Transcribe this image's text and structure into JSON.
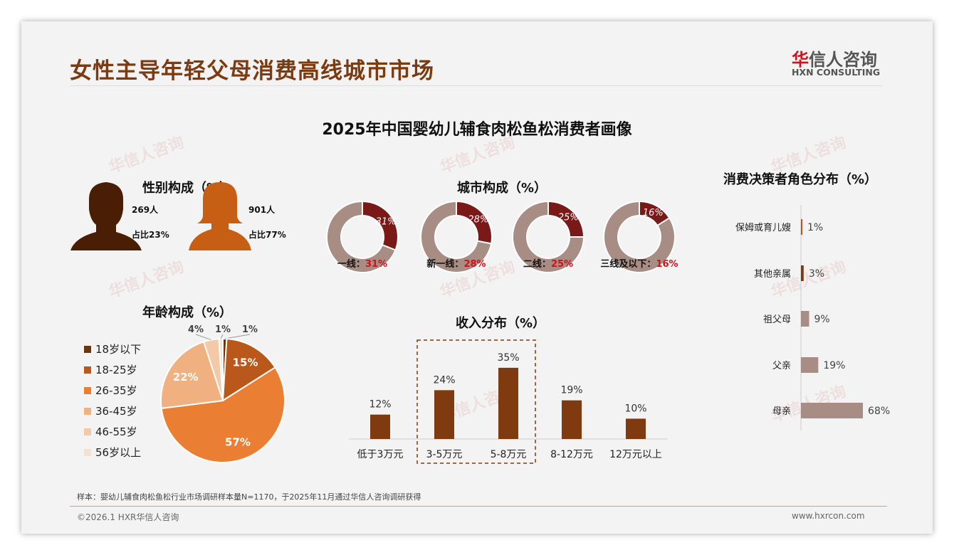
{
  "header": {
    "title": "女性主导年轻父母消费高线城市市场",
    "logo_cn_red": "华",
    "logo_cn_rest": "信人咨询",
    "logo_en": "HXN CONSULTING"
  },
  "subtitle": "2025年中国婴幼儿辅食肉松鱼松消费者画像",
  "gender": {
    "title": "性别构成（%）",
    "male": {
      "count": "269人",
      "share": "占比23%",
      "color": "#4a1e05"
    },
    "female": {
      "count": "901人",
      "share": "占比77%",
      "color": "#c65f14"
    }
  },
  "city": {
    "title": "城市构成（%）",
    "items": [
      {
        "label": "一线：",
        "value": 31,
        "text": "31%"
      },
      {
        "label": "新一线：",
        "value": 28,
        "text": "28%"
      },
      {
        "label": "二线：",
        "value": 25,
        "text": "25%"
      },
      {
        "label": "三线及以下：",
        "value": 16,
        "text": "16%"
      }
    ],
    "color": "#7a1a18",
    "rest_color": "#a88d84"
  },
  "chart_data": [
    {
      "type": "pie",
      "title": "年龄构成（%）",
      "categories": [
        "18岁以下",
        "18-25岁",
        "26-35岁",
        "36-45岁",
        "46-55岁",
        "56岁以上"
      ],
      "values": [
        1,
        15,
        57,
        22,
        4,
        1
      ],
      "labels": [
        "1%",
        "15%",
        "57%",
        "22%",
        "4%",
        "1%"
      ],
      "colors": [
        "#6b3510",
        "#b9581a",
        "#ea7e33",
        "#f0b080",
        "#f3c9a8",
        "#f6e0d0"
      ],
      "legend": "left"
    },
    {
      "type": "bar",
      "title": "收入分布（%）",
      "categories": [
        "低于3万元",
        "3-5万元",
        "5-8万元",
        "8-12万元",
        "12万元以上"
      ],
      "values": [
        12,
        24,
        35,
        19,
        10
      ],
      "labels": [
        "12%",
        "24%",
        "35%",
        "19%",
        "10%"
      ],
      "color": "#7f3a10",
      "highlight": [
        "3-5万元",
        "5-8万元"
      ]
    },
    {
      "type": "bar",
      "orientation": "horizontal",
      "title": "消费决策者角色分布（%）",
      "categories": [
        "保姆或育儿嫂",
        "其他亲属",
        "祖父母",
        "父亲",
        "母亲"
      ],
      "values": [
        1,
        3,
        9,
        19,
        68
      ],
      "labels": [
        "1%",
        "3%",
        "9%",
        "19%",
        "68%"
      ],
      "colors": [
        "#b9581a",
        "#7f3a10",
        "#a88d84",
        "#a88d84",
        "#a88d84"
      ]
    }
  ],
  "footer": {
    "note": "样本：婴幼儿辅食肉松鱼松行业市场调研样本量N=1170，于2025年11月通过华信人咨询调研获得",
    "copyright": "©2026.1 HXR华信人咨询",
    "url": "www.hxrcon.com"
  }
}
